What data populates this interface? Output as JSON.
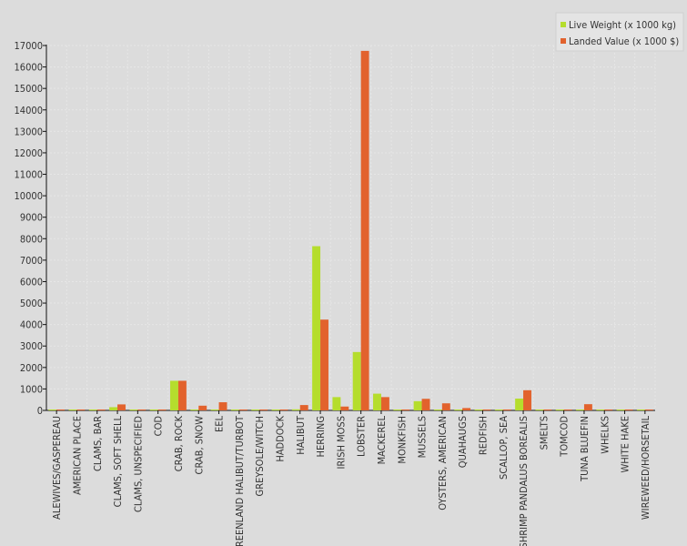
{
  "chart_data": {
    "type": "bar",
    "title": "",
    "xlabel": "",
    "ylabel": "",
    "ylim": [
      0,
      17000
    ],
    "yticks": [
      0,
      1000,
      2000,
      3000,
      4000,
      5000,
      6000,
      7000,
      8000,
      9000,
      10000,
      11000,
      12000,
      13000,
      14000,
      15000,
      16000,
      17000
    ],
    "grid": true,
    "legend_position": "top-right",
    "categories": [
      "ALEWIVES/GASPEREAU",
      "AMERICAN PLACE",
      "CLAMS, BAR",
      "CLAMS, SOFT SHELL",
      "CLAMS, UNSPECIFIED",
      "COD",
      "CRAB, ROCK",
      "CRAB, SNOW",
      "EEL",
      "GREENLAND HALIBUT/TURBOT",
      "GREYSOLE/WITCH",
      "HADDOCK",
      "HALIBUT",
      "HERRING",
      "IRISH MOSS",
      "LOBSTER",
      "MACKEREL",
      "MONKFISH",
      "MUSSELS",
      "OYSTERS, AMERICAN",
      "QUAHAUGS",
      "REDFISH",
      "SCALLOP, SEA",
      "SHRIMP PANDALUS BOREALIS",
      "SMELTS",
      "TOMCOD",
      "TUNA BLUEFIN",
      "WHELKS",
      "WHITE HAKE",
      "WIREWEED/HORSETAIL"
    ],
    "series": [
      {
        "name": "Live Weight (x 1000 kg)",
        "color": "#b5dd2d",
        "values": [
          20,
          15,
          25,
          150,
          20,
          20,
          1380,
          30,
          30,
          10,
          10,
          15,
          50,
          7650,
          620,
          2720,
          780,
          10,
          430,
          15,
          20,
          10,
          15,
          550,
          15,
          15,
          15,
          20,
          15,
          40
        ]
      },
      {
        "name": "Landed Value (x 1000 $)",
        "color": "#e2622d",
        "values": [
          30,
          20,
          30,
          280,
          40,
          30,
          1380,
          220,
          380,
          30,
          20,
          40,
          250,
          4230,
          180,
          16750,
          620,
          20,
          540,
          330,
          110,
          40,
          20,
          940,
          30,
          20,
          290,
          30,
          20,
          10
        ]
      }
    ]
  }
}
